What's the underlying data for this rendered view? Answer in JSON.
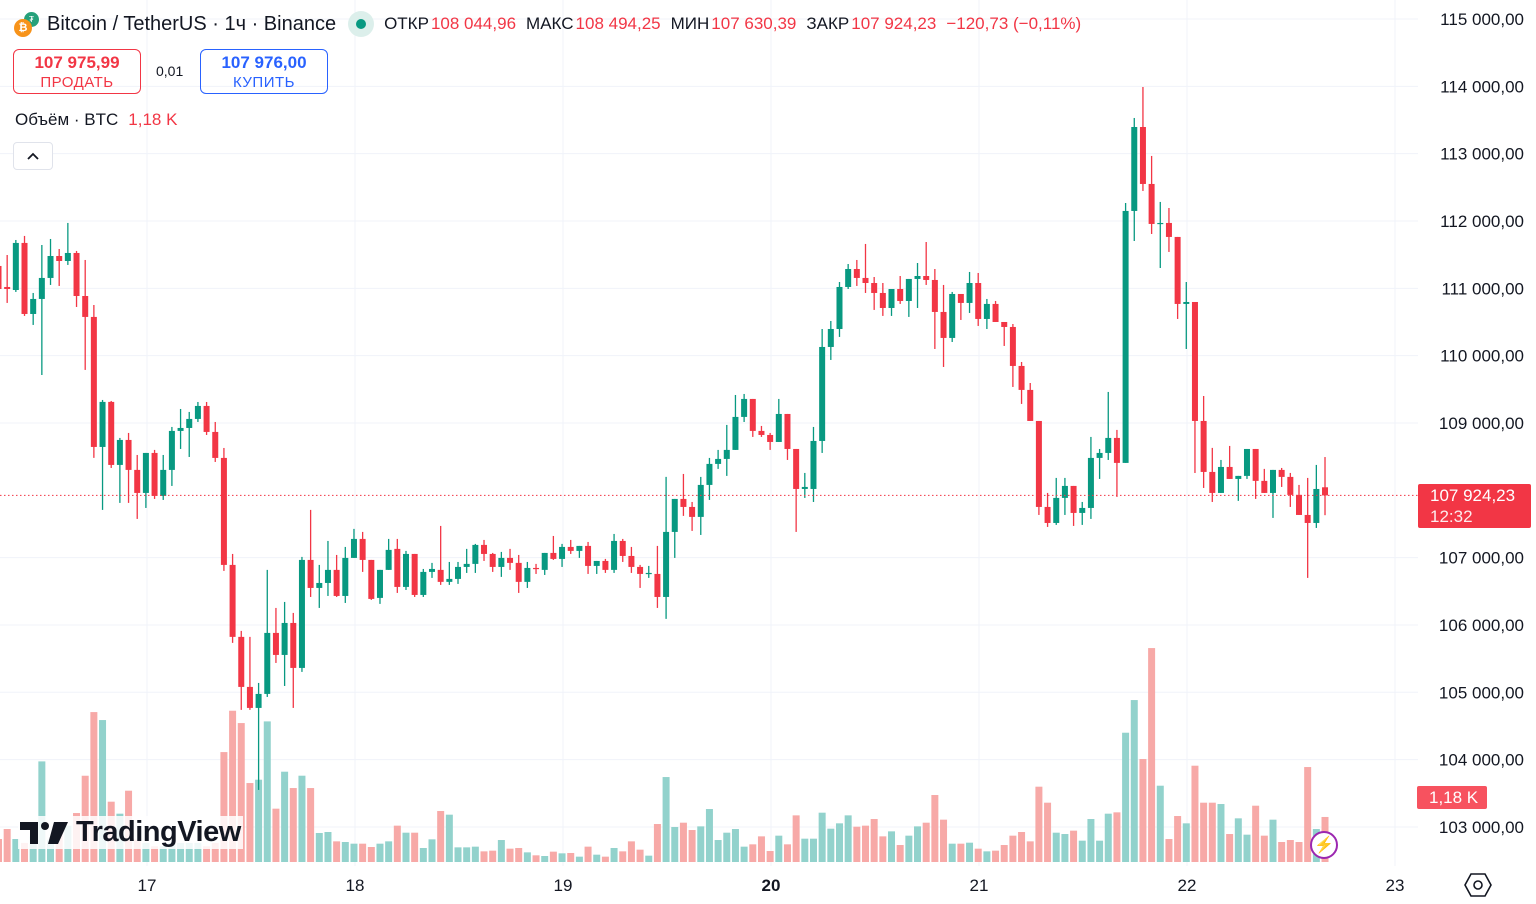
{
  "header": {
    "symbol_title": "Bitcoin / TetherUS · 1ч · Binance",
    "open_label": "ОТКР",
    "open_value": "108 044,96",
    "high_label": "МАКС",
    "high_value": "108 494,25",
    "low_label": "МИН",
    "low_value": "107 630,39",
    "close_label": "ЗАКР",
    "close_value": "107 924,23",
    "change": "−120,73 (−0,11%)",
    "market_status": "open"
  },
  "trade": {
    "sell_price": "107 975,99",
    "sell_label": "ПРОДАТЬ",
    "spread": "0,01",
    "buy_price": "107 976,00",
    "buy_label": "КУПИТЬ"
  },
  "volume_legend": {
    "label": "Объём · BTC",
    "value": "1,18 K"
  },
  "logo": {
    "mark": "17",
    "text": "TradingView"
  },
  "price_tag": {
    "price": "107 924,23",
    "countdown": "12:32"
  },
  "volume_tag": "1,18 K",
  "colors": {
    "up": "#089981",
    "down": "#f23645",
    "up_volume": "#92d2cc",
    "down_volume": "#f7a9a7",
    "buy": "#2962ff",
    "alert": "#9c27b0"
  },
  "icons": [
    "bitcoin-tether-icon",
    "market-open-dot-icon",
    "chevron-up-icon",
    "lightning-icon",
    "settings-hexagon-icon"
  ],
  "chart_data": {
    "type": "candlestick",
    "interval": "1ч",
    "ylim": [
      102500,
      115300
    ],
    "grid": true,
    "y_ticks": [
      {
        "value": 115000,
        "label": "115 000,00"
      },
      {
        "value": 114000,
        "label": "114 000,00"
      },
      {
        "value": 113000,
        "label": "113 000,00"
      },
      {
        "value": 112000,
        "label": "112 000,00"
      },
      {
        "value": 111000,
        "label": "111 000,00"
      },
      {
        "value": 110000,
        "label": "110 000,00"
      },
      {
        "value": 109000,
        "label": "109 000,00"
      },
      {
        "value": 107000,
        "label": "107 000,00"
      },
      {
        "value": 106000,
        "label": "106 000,00"
      },
      {
        "value": 105000,
        "label": "105 000,00"
      },
      {
        "value": 104000,
        "label": "104 000,00"
      },
      {
        "value": 103000,
        "label": "103 000,00"
      }
    ],
    "x_ticks": [
      {
        "label": "17",
        "bold": false
      },
      {
        "label": "18",
        "bold": false
      },
      {
        "label": "19",
        "bold": false
      },
      {
        "label": "20",
        "bold": true
      },
      {
        "label": "21",
        "bold": false
      },
      {
        "label": "22",
        "bold": false
      },
      {
        "label": "23",
        "bold": false
      }
    ],
    "last_price": 107924.23,
    "columns": [
      "open",
      "high",
      "low",
      "close",
      "volume"
    ],
    "candles": [
      [
        111332,
        111391,
        110975,
        110990,
        602
      ],
      [
        111020,
        111495,
        110783,
        110990,
        864
      ],
      [
        110975,
        111718,
        110946,
        111674,
        602
      ],
      [
        111674,
        111778,
        110590,
        110619,
        500
      ],
      [
        110619,
        110931,
        110456,
        110842,
        670
      ],
      [
        110842,
        111644,
        109713,
        111154,
        2636
      ],
      [
        111154,
        111733,
        111050,
        111480,
        585
      ],
      [
        111480,
        111584,
        111035,
        111406,
        786
      ],
      [
        111406,
        111971,
        111347,
        111525,
        950
      ],
      [
        111525,
        111555,
        110723,
        110886,
        1283
      ],
      [
        110886,
        111421,
        109788,
        110575,
        2260
      ],
      [
        110575,
        110753,
        108481,
        108644,
        3928
      ],
      [
        108644,
        109342,
        107709,
        109313,
        3719
      ],
      [
        109313,
        109327,
        108332,
        108377,
        1580
      ],
      [
        108377,
        108778,
        107813,
        108748,
        1266
      ],
      [
        108748,
        108852,
        107813,
        108303,
        1868
      ],
      [
        108303,
        108525,
        107575,
        107961,
        585
      ],
      [
        107961,
        108555,
        107738,
        108555,
        500
      ],
      [
        108555,
        108600,
        107872,
        107917,
        410
      ],
      [
        107917,
        108525,
        107857,
        108303,
        410
      ],
      [
        108303,
        108941,
        108065,
        108882,
        500
      ],
      [
        108882,
        109208,
        108614,
        108926,
        500
      ],
      [
        108926,
        109164,
        108495,
        109060,
        500
      ],
      [
        109060,
        109312,
        109015,
        109253,
        500
      ],
      [
        109253,
        109312,
        108822,
        108867,
        410
      ],
      [
        108867,
        109015,
        108421,
        108481,
        500
      ],
      [
        108481,
        108629,
        106803,
        106892,
        2880
      ],
      [
        106892,
        107055,
        105734,
        105823,
        3963
      ],
      [
        105823,
        105912,
        104739,
        105080,
        3640
      ],
      [
        105080,
        105823,
        104739,
        104768,
        2069
      ],
      [
        104768,
        105139,
        103550,
        104976,
        2156
      ],
      [
        104976,
        106818,
        104931,
        105882,
        3684
      ],
      [
        105882,
        106253,
        105436,
        105555,
        1397
      ],
      [
        105555,
        106342,
        105094,
        106030,
        2366
      ],
      [
        106030,
        106179,
        104768,
        105362,
        1938
      ],
      [
        105362,
        107011,
        105303,
        106966,
        2261
      ],
      [
        106966,
        107709,
        106416,
        106550,
        1938
      ],
      [
        106550,
        106892,
        106253,
        106624,
        760
      ],
      [
        106624,
        107248,
        106431,
        106818,
        786
      ],
      [
        106818,
        107040,
        106416,
        106431,
        541
      ],
      [
        106431,
        107159,
        106327,
        106996,
        524
      ],
      [
        106996,
        107427,
        106996,
        107278,
        480
      ],
      [
        107278,
        107382,
        106788,
        106966,
        480
      ],
      [
        106966,
        106966,
        106372,
        106387,
        393
      ],
      [
        106402,
        106818,
        106313,
        106818,
        480
      ],
      [
        106818,
        107278,
        106818,
        107115,
        541
      ],
      [
        107130,
        107278,
        106476,
        106565,
        952
      ],
      [
        106565,
        107100,
        106520,
        107055,
        768
      ],
      [
        107055,
        107055,
        106416,
        106446,
        768
      ],
      [
        106446,
        106832,
        106416,
        106788,
        367
      ],
      [
        106788,
        106922,
        106699,
        106832,
        594
      ],
      [
        106818,
        107471,
        106595,
        106640,
        1336
      ],
      [
        106640,
        106936,
        106595,
        106684,
        1240
      ],
      [
        106684,
        106936,
        106610,
        106862,
        384
      ],
      [
        106862,
        107130,
        106773,
        106907,
        384
      ],
      [
        106907,
        107204,
        106773,
        107189,
        402
      ],
      [
        107189,
        107263,
        106951,
        107055,
        279
      ],
      [
        107055,
        107070,
        106788,
        106862,
        297
      ],
      [
        106862,
        107085,
        106714,
        106996,
        576
      ],
      [
        106996,
        107130,
        106818,
        106922,
        349
      ],
      [
        106922,
        107040,
        106476,
        106640,
        367
      ],
      [
        106640,
        106936,
        106550,
        106847,
        253
      ],
      [
        106847,
        106907,
        106758,
        106832,
        175
      ],
      [
        106818,
        107070,
        106743,
        107070,
        157
      ],
      [
        107070,
        107322,
        106966,
        106981,
        271
      ],
      [
        106981,
        107204,
        106862,
        107159,
        227
      ],
      [
        107159,
        107263,
        107055,
        107100,
        236
      ],
      [
        107100,
        107174,
        106996,
        107174,
        140
      ],
      [
        107174,
        107233,
        106758,
        106877,
        402
      ],
      [
        106877,
        106951,
        106758,
        106951,
        192
      ],
      [
        106951,
        106981,
        106773,
        106818,
        140
      ],
      [
        106818,
        107352,
        106773,
        107248,
        367
      ],
      [
        107248,
        107278,
        106936,
        107025,
        279
      ],
      [
        107025,
        107159,
        106773,
        106862,
        541
      ],
      [
        106862,
        106892,
        106550,
        106758,
        323
      ],
      [
        106758,
        106877,
        106699,
        106773,
        166
      ],
      [
        106758,
        107174,
        106253,
        106416,
        995
      ],
      [
        106416,
        108199,
        106090,
        107382,
        2226
      ],
      [
        107382,
        107872,
        106996,
        107872,
        917
      ],
      [
        107872,
        108243,
        107620,
        107753,
        1030
      ],
      [
        107753,
        107827,
        107397,
        107605,
        838
      ],
      [
        107605,
        108199,
        107337,
        108080,
        934
      ],
      [
        108080,
        108481,
        107857,
        108392,
        1388
      ],
      [
        108392,
        108600,
        108318,
        108466,
        576
      ],
      [
        108466,
        108971,
        108214,
        108600,
        768
      ],
      [
        108600,
        109416,
        108600,
        109090,
        864
      ],
      [
        109090,
        109431,
        109015,
        109357,
        402
      ],
      [
        109357,
        109357,
        108793,
        108882,
        463
      ],
      [
        108882,
        108956,
        108793,
        108822,
        672
      ],
      [
        108822,
        108852,
        108600,
        108718,
        288
      ],
      [
        108718,
        109357,
        108718,
        109134,
        690
      ],
      [
        109134,
        109134,
        108451,
        108614,
        463
      ],
      [
        108614,
        108614,
        107382,
        108020,
        1222
      ],
      [
        108020,
        108258,
        107887,
        108050,
        611
      ],
      [
        108020,
        108941,
        107827,
        108733,
        611
      ],
      [
        108733,
        110396,
        108555,
        110129,
        1292
      ],
      [
        110129,
        110515,
        109936,
        110396,
        873
      ],
      [
        110396,
        111094,
        110278,
        111020,
        1013
      ],
      [
        111020,
        111361,
        110990,
        111287,
        1222
      ],
      [
        111287,
        111421,
        111035,
        111154,
        925
      ],
      [
        111154,
        111659,
        110931,
        111079,
        952
      ],
      [
        111079,
        111168,
        110679,
        110931,
        1126
      ],
      [
        110931,
        111079,
        110590,
        110708,
        672
      ],
      [
        110708,
        110990,
        110590,
        110990,
        803
      ],
      [
        110990,
        111183,
        110768,
        110812,
        445
      ],
      [
        110812,
        111139,
        110575,
        111139,
        690
      ],
      [
        111139,
        111376,
        110708,
        111183,
        934
      ],
      [
        111183,
        111688,
        111050,
        111124,
        1030
      ],
      [
        111124,
        111287,
        110099,
        110649,
        1755
      ],
      [
        110649,
        111050,
        109832,
        110263,
        1109
      ],
      [
        110263,
        110946,
        110203,
        110916,
        480
      ],
      [
        110916,
        110916,
        110530,
        110783,
        480
      ],
      [
        110783,
        111243,
        110634,
        111079,
        506
      ],
      [
        111079,
        111228,
        110441,
        110545,
        349
      ],
      [
        110545,
        110842,
        110396,
        110768,
        279
      ],
      [
        110768,
        110812,
        110500,
        110500,
        297
      ],
      [
        110500,
        110500,
        110144,
        110426,
        445
      ],
      [
        110426,
        110470,
        109535,
        109847,
        690
      ],
      [
        109847,
        109906,
        109283,
        109491,
        786
      ],
      [
        109491,
        109594,
        109030,
        109030,
        541
      ],
      [
        109030,
        109030,
        107634,
        107753,
        1973
      ],
      [
        107753,
        107961,
        107456,
        107515,
        1554
      ],
      [
        107515,
        108184,
        107486,
        107887,
        768
      ],
      [
        107887,
        108184,
        107634,
        108065,
        733
      ],
      [
        108065,
        108065,
        107471,
        107664,
        821
      ],
      [
        107664,
        107827,
        107486,
        107738,
        559
      ],
      [
        107738,
        108793,
        107575,
        108481,
        1126
      ],
      [
        108481,
        108614,
        108169,
        108555,
        559
      ],
      [
        108555,
        109461,
        108451,
        108778,
        1266
      ],
      [
        108778,
        108897,
        107902,
        108407,
        1301
      ],
      [
        108407,
        112268,
        108407,
        112149,
        3387
      ],
      [
        112149,
        113530,
        111703,
        113396,
        4243
      ],
      [
        113396,
        113990,
        112446,
        112550,
        2698
      ],
      [
        112550,
        112966,
        111807,
        111956,
        5605
      ],
      [
        111956,
        112283,
        111302,
        111971,
        1999
      ],
      [
        111971,
        112193,
        111540,
        111763,
        602
      ],
      [
        111763,
        111763,
        110545,
        110768,
        1205
      ],
      [
        110768,
        111094,
        110099,
        110797,
        1013
      ],
      [
        110797,
        110797,
        108258,
        109030,
        2523
      ],
      [
        109030,
        109401,
        108035,
        108273,
        1554
      ],
      [
        108273,
        108630,
        107827,
        107961,
        1554
      ],
      [
        107961,
        108451,
        107961,
        108347,
        1519
      ],
      [
        108347,
        108659,
        108169,
        108169,
        733
      ],
      [
        108169,
        108214,
        107843,
        108214,
        1144
      ],
      [
        108214,
        108614,
        108169,
        108614,
        716
      ],
      [
        108614,
        108614,
        107872,
        108140,
        1475
      ],
      [
        108140,
        108318,
        107961,
        107961,
        690
      ],
      [
        107961,
        108303,
        107590,
        108303,
        1109
      ],
      [
        108303,
        108332,
        108050,
        108199,
        524
      ],
      [
        108199,
        108258,
        107753,
        107932,
        576
      ],
      [
        107932,
        108080,
        107634,
        107634,
        524
      ],
      [
        107634,
        108184,
        106699,
        107515,
        2488
      ],
      [
        107515,
        108377,
        107441,
        108020,
        864
      ],
      [
        108044.96,
        108494.25,
        107630.39,
        107924.23,
        1180
      ]
    ]
  }
}
